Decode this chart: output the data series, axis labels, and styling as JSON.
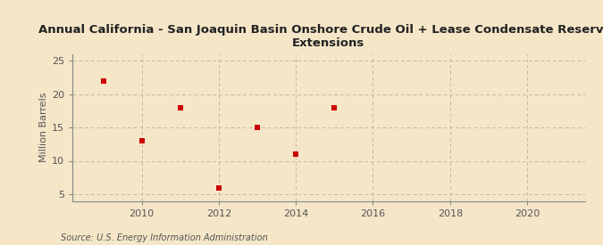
{
  "title": "Annual California - San Joaquin Basin Onshore Crude Oil + Lease Condensate Reserves\nExtensions",
  "ylabel": "Million Barrels",
  "source": "Source: U.S. Energy Information Administration",
  "background_color": "#f5e6c8",
  "plot_bg_color": "#f5e6c8",
  "grid_color": "#c8b89a",
  "x_data": [
    2009,
    2010,
    2011,
    2012,
    2013,
    2014,
    2015
  ],
  "y_data": [
    22.0,
    13.0,
    18.0,
    6.0,
    15.0,
    11.0,
    18.0
  ],
  "marker_color": "#cc0000",
  "marker_size": 25,
  "xlim": [
    2008.2,
    2021.5
  ],
  "ylim": [
    4,
    26
  ],
  "xticks": [
    2010,
    2012,
    2014,
    2016,
    2018,
    2020
  ],
  "yticks": [
    5,
    10,
    15,
    20,
    25
  ],
  "title_fontsize": 9.5,
  "axis_fontsize": 8,
  "source_fontsize": 7
}
